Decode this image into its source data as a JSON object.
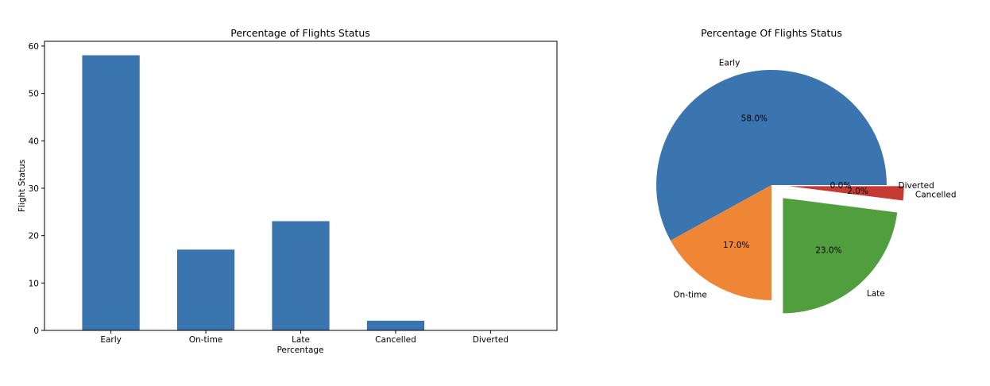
{
  "chart_data": [
    {
      "type": "bar",
      "title": "Percentage of Flights Status",
      "xlabel": "Percentage",
      "ylabel": "Flight Status",
      "categories": [
        "Early",
        "On-time",
        "Late",
        "Cancelled",
        "Diverted"
      ],
      "values": [
        58,
        17,
        23,
        2,
        0
      ],
      "ylim": [
        0,
        61
      ],
      "yticks": [
        0,
        10,
        20,
        30,
        40,
        50,
        60
      ],
      "color": "#3b75af",
      "grid": false
    },
    {
      "type": "pie",
      "title": "Percentage Of Flights Status",
      "labels": [
        "Early",
        "On-time",
        "Late",
        "Cancelled",
        "Diverted"
      ],
      "values": [
        58,
        17,
        23,
        2,
        0
      ],
      "percent_labels": [
        "58.0%",
        "17.0%",
        "23.0%",
        "2.0%",
        "0.0%"
      ],
      "exploded": [
        false,
        false,
        true,
        true,
        false
      ],
      "colors": [
        "#3b75af",
        "#ef8636",
        "#519e3e",
        "#c53a32",
        "#8d69b8"
      ]
    }
  ]
}
